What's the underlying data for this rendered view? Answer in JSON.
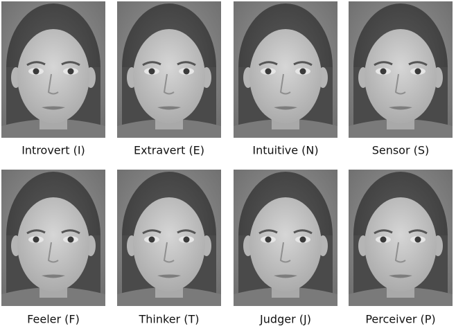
{
  "panels": [
    {
      "label": "Introvert (I)"
    },
    {
      "label": "Extravert (E)"
    },
    {
      "label": "Intuitive (N)"
    },
    {
      "label": "Sensor (S)"
    },
    {
      "label": "Feeler (F)"
    },
    {
      "label": "Thinker (T)"
    },
    {
      "label": "Judger (J)"
    },
    {
      "label": "Perceiver (P)"
    }
  ]
}
